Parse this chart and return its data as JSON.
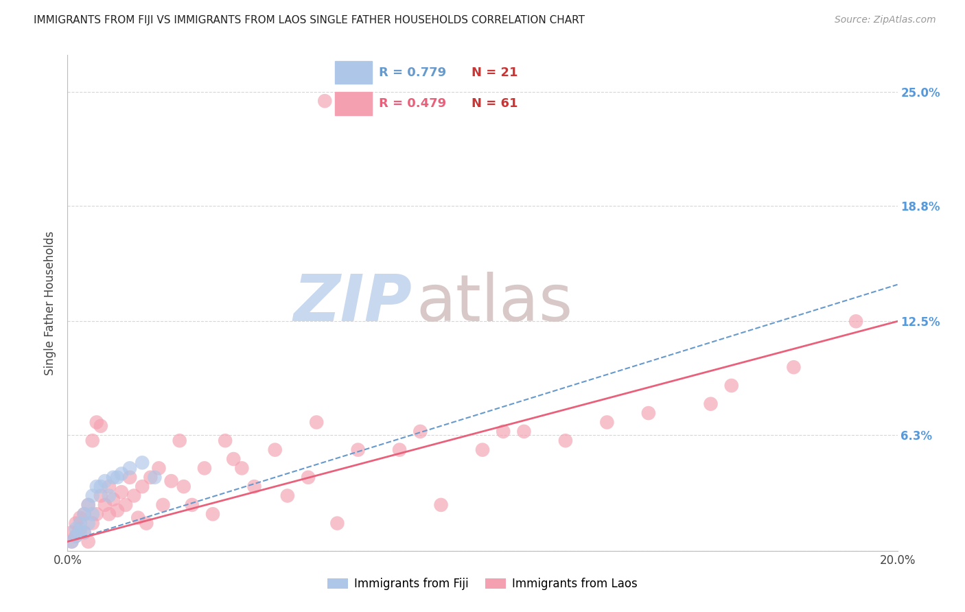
{
  "title": "IMMIGRANTS FROM FIJI VS IMMIGRANTS FROM LAOS SINGLE FATHER HOUSEHOLDS CORRELATION CHART",
  "source": "Source: ZipAtlas.com",
  "ylabel": "Single Father Households",
  "xlim": [
    0.0,
    0.2
  ],
  "ylim": [
    0.0,
    0.27
  ],
  "yticks": [
    0.0,
    0.063,
    0.125,
    0.188,
    0.25
  ],
  "ytick_labels": [
    "",
    "6.3%",
    "12.5%",
    "18.8%",
    "25.0%"
  ],
  "xticks": [
    0.0,
    0.05,
    0.1,
    0.15,
    0.2
  ],
  "xtick_labels": [
    "0.0%",
    "",
    "",
    "",
    "20.0%"
  ],
  "fiji_R": 0.779,
  "fiji_N": 21,
  "laos_R": 0.479,
  "laos_N": 61,
  "fiji_color": "#aec6e8",
  "laos_color": "#f4a0b0",
  "fiji_line_color": "#6699cc",
  "laos_line_color": "#e8607a",
  "fiji_scatter_x": [
    0.001,
    0.002,
    0.002,
    0.003,
    0.003,
    0.004,
    0.004,
    0.005,
    0.005,
    0.006,
    0.006,
    0.007,
    0.008,
    0.009,
    0.01,
    0.011,
    0.012,
    0.013,
    0.015,
    0.018,
    0.021
  ],
  "fiji_scatter_y": [
    0.005,
    0.008,
    0.012,
    0.01,
    0.015,
    0.01,
    0.02,
    0.015,
    0.025,
    0.02,
    0.03,
    0.035,
    0.035,
    0.038,
    0.03,
    0.04,
    0.04,
    0.042,
    0.045,
    0.048,
    0.04
  ],
  "laos_scatter_x": [
    0.001,
    0.001,
    0.002,
    0.002,
    0.003,
    0.003,
    0.004,
    0.004,
    0.005,
    0.005,
    0.006,
    0.006,
    0.007,
    0.007,
    0.008,
    0.008,
    0.009,
    0.01,
    0.01,
    0.011,
    0.012,
    0.013,
    0.014,
    0.015,
    0.016,
    0.017,
    0.018,
    0.019,
    0.02,
    0.022,
    0.023,
    0.025,
    0.027,
    0.028,
    0.03,
    0.033,
    0.035,
    0.038,
    0.04,
    0.042,
    0.045,
    0.05,
    0.053,
    0.058,
    0.06,
    0.065,
    0.07,
    0.08,
    0.085,
    0.09,
    0.1,
    0.105,
    0.11,
    0.12,
    0.13,
    0.14,
    0.155,
    0.16,
    0.175,
    0.19,
    0.062
  ],
  "laos_scatter_y": [
    0.005,
    0.01,
    0.008,
    0.015,
    0.012,
    0.018,
    0.01,
    0.02,
    0.005,
    0.025,
    0.015,
    0.06,
    0.02,
    0.07,
    0.03,
    0.068,
    0.025,
    0.02,
    0.035,
    0.028,
    0.022,
    0.032,
    0.025,
    0.04,
    0.03,
    0.018,
    0.035,
    0.015,
    0.04,
    0.045,
    0.025,
    0.038,
    0.06,
    0.035,
    0.025,
    0.045,
    0.02,
    0.06,
    0.05,
    0.045,
    0.035,
    0.055,
    0.03,
    0.04,
    0.07,
    0.015,
    0.055,
    0.055,
    0.065,
    0.025,
    0.055,
    0.065,
    0.065,
    0.06,
    0.07,
    0.075,
    0.08,
    0.09,
    0.1,
    0.125,
    0.245
  ],
  "fiji_line_x0": 0.0,
  "fiji_line_y0": 0.005,
  "fiji_line_x1": 0.2,
  "fiji_line_y1": 0.145,
  "laos_line_x0": 0.0,
  "laos_line_y0": 0.005,
  "laos_line_x1": 0.2,
  "laos_line_y1": 0.125,
  "background_color": "#ffffff",
  "grid_color": "#cccccc",
  "watermark_zip": "ZIP",
  "watermark_atlas": "atlas",
  "watermark_color_zip": "#c8d8ee",
  "watermark_color_atlas": "#d8c8c8",
  "right_axis_color": "#5599dd",
  "legend_border_color": "#cccccc"
}
